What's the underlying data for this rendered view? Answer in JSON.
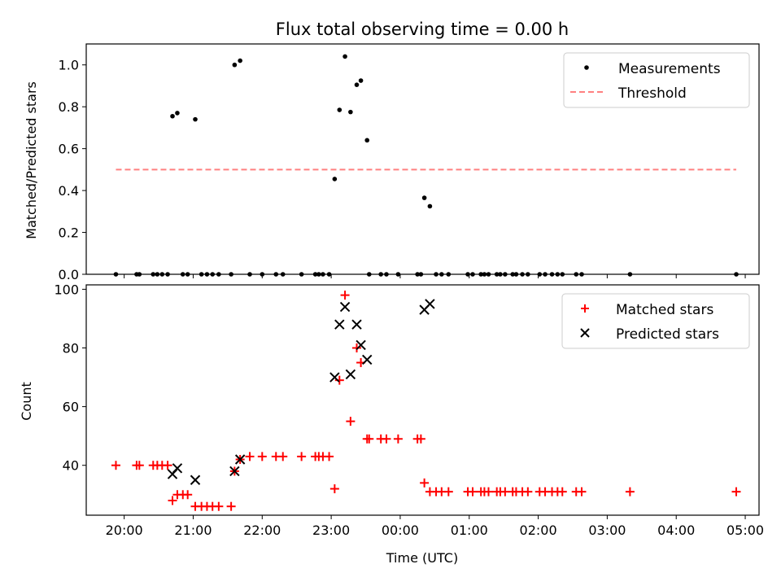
{
  "chart_data": [
    {
      "type": "scatter",
      "title": "Flux total observing time = 0.00 h",
      "xlabel": "",
      "ylabel": "Matched/Predicted stars",
      "xlim_hours": [
        19.45,
        29.2
      ],
      "ylim": [
        0,
        1.1
      ],
      "yticks": [
        0.0,
        0.2,
        0.4,
        0.6,
        0.8,
        1.0
      ],
      "ytick_labels": [
        "0.0",
        "0.2",
        "0.4",
        "0.6",
        "0.8",
        "1.0"
      ],
      "legend_position": "top-right",
      "grid": false,
      "series": [
        {
          "name": "Measurements",
          "marker": "dot",
          "color": "#000000",
          "points": [
            [
              19.88,
              0
            ],
            [
              20.18,
              0
            ],
            [
              20.22,
              0
            ],
            [
              20.42,
              0
            ],
            [
              20.48,
              0
            ],
            [
              20.55,
              0
            ],
            [
              20.63,
              0
            ],
            [
              20.85,
              0
            ],
            [
              20.92,
              0
            ],
            [
              21.12,
              0
            ],
            [
              21.2,
              0
            ],
            [
              21.28,
              0
            ],
            [
              21.37,
              0
            ],
            [
              21.55,
              0
            ],
            [
              21.82,
              0
            ],
            [
              22.0,
              0
            ],
            [
              22.2,
              0
            ],
            [
              22.3,
              0
            ],
            [
              22.57,
              0
            ],
            [
              22.77,
              0
            ],
            [
              22.82,
              0
            ],
            [
              22.88,
              0
            ],
            [
              22.97,
              0
            ],
            [
              23.55,
              0
            ],
            [
              23.72,
              0
            ],
            [
              23.8,
              0
            ],
            [
              23.97,
              0
            ],
            [
              24.25,
              0
            ],
            [
              24.3,
              0
            ],
            [
              24.52,
              0
            ],
            [
              24.6,
              0
            ],
            [
              24.7,
              0
            ],
            [
              24.98,
              0
            ],
            [
              25.05,
              0
            ],
            [
              25.17,
              0
            ],
            [
              25.22,
              0
            ],
            [
              25.28,
              0
            ],
            [
              25.4,
              0
            ],
            [
              25.45,
              0
            ],
            [
              25.52,
              0
            ],
            [
              25.63,
              0
            ],
            [
              25.68,
              0
            ],
            [
              25.77,
              0
            ],
            [
              25.85,
              0
            ],
            [
              26.02,
              0
            ],
            [
              26.1,
              0
            ],
            [
              26.2,
              0
            ],
            [
              26.28,
              0
            ],
            [
              26.35,
              0
            ],
            [
              26.55,
              0
            ],
            [
              26.63,
              0
            ],
            [
              27.33,
              0
            ],
            [
              28.87,
              0
            ],
            [
              20.7,
              0.755
            ],
            [
              20.77,
              0.77
            ],
            [
              21.03,
              0.74
            ],
            [
              21.6,
              1.0
            ],
            [
              21.68,
              1.02
            ],
            [
              23.05,
              0.455
            ],
            [
              23.12,
              0.785
            ],
            [
              23.2,
              1.04
            ],
            [
              23.28,
              0.775
            ],
            [
              23.37,
              0.905
            ],
            [
              23.43,
              0.925
            ],
            [
              23.52,
              0.64
            ],
            [
              24.35,
              0.365
            ],
            [
              24.43,
              0.325
            ]
          ]
        },
        {
          "name": "Threshold",
          "style": "dashed",
          "color": "#ff8080",
          "x": [
            19.88,
            28.87
          ],
          "y": [
            0.5,
            0.5
          ]
        }
      ]
    },
    {
      "type": "scatter",
      "title": "",
      "xlabel": "Time (UTC)",
      "ylabel": "Count",
      "xlim_hours": [
        19.45,
        29.2
      ],
      "ylim": [
        23,
        101.5
      ],
      "yticks": [
        40,
        60,
        80,
        100
      ],
      "ytick_labels": [
        "40",
        "60",
        "80",
        "100"
      ],
      "xticks": [
        20,
        21,
        22,
        23,
        24,
        25,
        26,
        27,
        28,
        29
      ],
      "xtick_labels": [
        "20:00",
        "21:00",
        "22:00",
        "23:00",
        "00:00",
        "01:00",
        "02:00",
        "03:00",
        "04:00",
        "05:00"
      ],
      "legend_position": "top-right",
      "grid": false,
      "series": [
        {
          "name": "Matched stars",
          "marker": "plus",
          "color": "#ff0000",
          "points": [
            [
              19.88,
              40
            ],
            [
              20.18,
              40
            ],
            [
              20.22,
              40
            ],
            [
              20.42,
              40
            ],
            [
              20.48,
              40
            ],
            [
              20.55,
              40
            ],
            [
              20.63,
              40
            ],
            [
              20.7,
              28
            ],
            [
              20.77,
              30
            ],
            [
              20.85,
              30
            ],
            [
              20.92,
              30
            ],
            [
              21.03,
              26
            ],
            [
              21.12,
              26
            ],
            [
              21.2,
              26
            ],
            [
              21.28,
              26
            ],
            [
              21.37,
              26
            ],
            [
              21.55,
              26
            ],
            [
              21.6,
              38
            ],
            [
              21.68,
              42
            ],
            [
              21.82,
              43
            ],
            [
              22.0,
              43
            ],
            [
              22.2,
              43
            ],
            [
              22.3,
              43
            ],
            [
              22.57,
              43
            ],
            [
              22.77,
              43
            ],
            [
              22.82,
              43
            ],
            [
              22.88,
              43
            ],
            [
              22.97,
              43
            ],
            [
              23.05,
              32
            ],
            [
              23.12,
              69
            ],
            [
              23.2,
              98
            ],
            [
              23.28,
              55
            ],
            [
              23.37,
              80
            ],
            [
              23.43,
              75
            ],
            [
              23.52,
              49
            ],
            [
              23.55,
              49
            ],
            [
              23.72,
              49
            ],
            [
              23.8,
              49
            ],
            [
              23.97,
              49
            ],
            [
              24.25,
              49
            ],
            [
              24.3,
              49
            ],
            [
              24.35,
              34
            ],
            [
              24.43,
              31
            ],
            [
              24.52,
              31
            ],
            [
              24.6,
              31
            ],
            [
              24.7,
              31
            ],
            [
              24.98,
              31
            ],
            [
              25.05,
              31
            ],
            [
              25.17,
              31
            ],
            [
              25.22,
              31
            ],
            [
              25.28,
              31
            ],
            [
              25.4,
              31
            ],
            [
              25.45,
              31
            ],
            [
              25.52,
              31
            ],
            [
              25.63,
              31
            ],
            [
              25.68,
              31
            ],
            [
              25.77,
              31
            ],
            [
              25.85,
              31
            ],
            [
              26.02,
              31
            ],
            [
              26.1,
              31
            ],
            [
              26.2,
              31
            ],
            [
              26.28,
              31
            ],
            [
              26.35,
              31
            ],
            [
              26.55,
              31
            ],
            [
              26.63,
              31
            ],
            [
              27.33,
              31
            ],
            [
              28.87,
              31
            ]
          ]
        },
        {
          "name": "Predicted stars",
          "marker": "x",
          "color": "#000000",
          "points": [
            [
              20.7,
              37
            ],
            [
              20.77,
              39
            ],
            [
              21.03,
              35
            ],
            [
              21.6,
              38
            ],
            [
              21.68,
              42
            ],
            [
              23.05,
              70
            ],
            [
              23.12,
              88
            ],
            [
              23.2,
              94
            ],
            [
              23.28,
              71
            ],
            [
              23.37,
              88
            ],
            [
              23.43,
              81
            ],
            [
              23.52,
              76
            ],
            [
              24.35,
              93
            ],
            [
              24.43,
              95
            ]
          ]
        }
      ]
    }
  ]
}
